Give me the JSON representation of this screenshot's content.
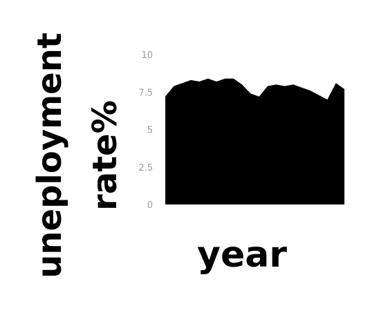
{
  "chart_data": {
    "type": "area",
    "title": "",
    "xlabel": "year",
    "ylabel_lines": [
      "uneployment",
      "rate%"
    ],
    "ylim": [
      0,
      10
    ],
    "yticks": [
      0,
      2.5,
      5,
      7.5,
      10
    ],
    "ytick_labels": [
      "0",
      "2.5",
      "5",
      "7.5",
      "10"
    ],
    "grid": false,
    "x": [
      1,
      2,
      3,
      4,
      5,
      6,
      7,
      8,
      9,
      10,
      11,
      12,
      13,
      14,
      15,
      16,
      17,
      18,
      19,
      20,
      21,
      22
    ],
    "series": [
      {
        "color": "#000000",
        "values": [
          7.2,
          7.9,
          8.1,
          8.3,
          8.2,
          8.4,
          8.2,
          8.4,
          8.4,
          8.0,
          7.4,
          7.2,
          7.9,
          8.0,
          7.9,
          8.0,
          7.8,
          7.6,
          7.3,
          7.0,
          8.1,
          7.7
        ]
      }
    ]
  }
}
